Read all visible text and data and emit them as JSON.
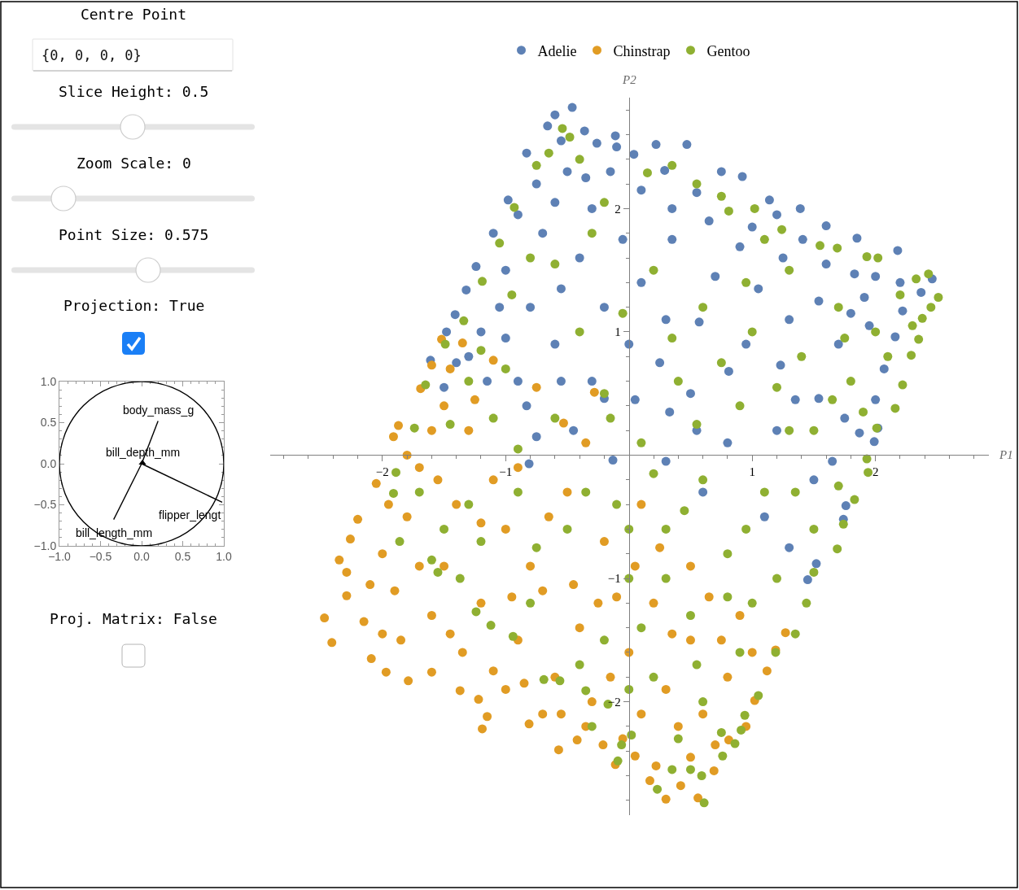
{
  "chart_data": [
    {
      "type": "other",
      "annotations": [
        "Centre Point",
        "{0, 0, 0, 0}",
        "Slice Height: 0.5",
        "Zoom Scale: 0",
        "Point Size: 0.575",
        "Projection: True"
      ]
    },
    {
      "type": "line",
      "xlim": [
        -1,
        1
      ],
      "ylim": [
        -1,
        1
      ],
      "xticks": [
        {
          "value": -1,
          "label": "−1.0"
        },
        {
          "value": -0.9,
          "label": null
        },
        {
          "value": -0.8,
          "label": null
        },
        {
          "value": -0.7,
          "label": null
        },
        {
          "value": -0.6,
          "label": null
        },
        {
          "value": -0.5,
          "label": "−0.5"
        },
        {
          "value": -0.4,
          "label": null
        },
        {
          "value": -0.3,
          "label": null
        },
        {
          "value": -0.2,
          "label": null
        },
        {
          "value": -0.1,
          "label": null
        },
        {
          "value": 0,
          "label": "0.0"
        },
        {
          "value": 0.1,
          "label": null
        },
        {
          "value": 0.2,
          "label": null
        },
        {
          "value": 0.3,
          "label": null
        },
        {
          "value": 0.4,
          "label": null
        },
        {
          "value": 0.5,
          "label": "0.5"
        },
        {
          "value": 0.6,
          "label": null
        },
        {
          "value": 0.7,
          "label": null
        },
        {
          "value": 0.8,
          "label": null
        },
        {
          "value": 0.9,
          "label": null
        },
        {
          "value": 1,
          "label": "1.0"
        }
      ],
      "yticks": [
        {
          "value": -1,
          "label": "−1.0"
        },
        {
          "value": -0.9,
          "label": null
        },
        {
          "value": -0.8,
          "label": null
        },
        {
          "value": -0.7,
          "label": null
        },
        {
          "value": -0.6,
          "label": null
        },
        {
          "value": -0.5,
          "label": "−0.5"
        },
        {
          "value": -0.4,
          "label": null
        },
        {
          "value": -0.3,
          "label": null
        },
        {
          "value": -0.2,
          "label": null
        },
        {
          "value": -0.1,
          "label": null
        },
        {
          "value": 0,
          "label": "0.0"
        },
        {
          "value": 0.1,
          "label": null
        },
        {
          "value": 0.2,
          "label": null
        },
        {
          "value": 0.3,
          "label": null
        },
        {
          "value": 0.4,
          "label": null
        },
        {
          "value": 0.5,
          "label": "0.5"
        },
        {
          "value": 0.6,
          "label": null
        },
        {
          "value": 0.7,
          "label": null
        },
        {
          "value": 0.8,
          "label": null
        },
        {
          "value": 0.9,
          "label": null
        },
        {
          "value": 1,
          "label": "1.0"
        }
      ],
      "series": [
        {
          "name": "body_mass_g",
          "color": "#000000",
          "x": [
            0,
            0.2
          ],
          "values": [
            0,
            0.52
          ]
        },
        {
          "name": "bill_depth_mm",
          "type": "scatter",
          "color": "#000000",
          "marker": "triangle",
          "x": [
            0.01
          ],
          "values": [
            0.01
          ]
        },
        {
          "name": "flipper_lengt",
          "color": "#000000",
          "x": [
            0,
            0.98
          ],
          "values": [
            0,
            -0.47
          ]
        },
        {
          "name": "bill_length_mm",
          "color": "#000000",
          "x": [
            0,
            -0.34
          ],
          "values": [
            0,
            -0.68
          ]
        }
      ]
    },
    {
      "type": "other",
      "annotations": [
        "Proj. Matrix: False"
      ]
    },
    {
      "type": "scatter",
      "xlabel": "P1",
      "ylabel": "P2",
      "xlim": [
        -2.91,
        2.92
      ],
      "ylim": [
        -2.92,
        2.9
      ],
      "xticks": [
        {
          "value": -2.8,
          "label": null
        },
        {
          "value": -2.6,
          "label": null
        },
        {
          "value": -2.4,
          "label": null
        },
        {
          "value": -2.2,
          "label": null
        },
        {
          "value": -2,
          "label": "−2"
        },
        {
          "value": -1.8,
          "label": null
        },
        {
          "value": -1.6,
          "label": null
        },
        {
          "value": -1.4,
          "label": null
        },
        {
          "value": -1.2,
          "label": null
        },
        {
          "value": -1,
          "label": "−1"
        },
        {
          "value": -0.8,
          "label": null
        },
        {
          "value": -0.6,
          "label": null
        },
        {
          "value": -0.4,
          "label": null
        },
        {
          "value": -0.2,
          "label": null
        },
        {
          "value": 0.2,
          "label": null
        },
        {
          "value": 0.4,
          "label": null
        },
        {
          "value": 0.6,
          "label": null
        },
        {
          "value": 0.8,
          "label": null
        },
        1,
        {
          "value": 1.2,
          "label": null
        },
        {
          "value": 1.4,
          "label": null
        },
        {
          "value": 1.6,
          "label": null
        },
        {
          "value": 1.8,
          "label": null
        },
        2,
        {
          "value": 2.2,
          "label": null
        },
        {
          "value": 2.4,
          "label": null
        },
        {
          "value": 2.6,
          "label": null
        },
        {
          "value": 2.8,
          "label": null
        }
      ],
      "yticks": [
        {
          "value": -2.8,
          "label": null
        },
        {
          "value": -2.6,
          "label": null
        },
        {
          "value": -2.4,
          "label": null
        },
        {
          "value": -2.2,
          "label": null
        },
        {
          "value": -2,
          "label": "−2"
        },
        {
          "value": -1.8,
          "label": null
        },
        {
          "value": -1.6,
          "label": null
        },
        {
          "value": -1.4,
          "label": null
        },
        {
          "value": -1.2,
          "label": null
        },
        {
          "value": -1,
          "label": "−1"
        },
        {
          "value": -0.8,
          "label": null
        },
        {
          "value": -0.6,
          "label": null
        },
        {
          "value": -0.4,
          "label": null
        },
        {
          "value": -0.2,
          "label": null
        },
        {
          "value": 0.2,
          "label": null
        },
        {
          "value": 0.4,
          "label": null
        },
        {
          "value": 0.6,
          "label": null
        },
        {
          "value": 0.8,
          "label": null
        },
        1,
        {
          "value": 1.2,
          "label": null
        },
        {
          "value": 1.4,
          "label": null
        },
        {
          "value": 1.6,
          "label": null
        },
        {
          "value": 1.8,
          "label": null
        },
        2,
        {
          "value": 2.2,
          "label": null
        },
        {
          "value": 2.4,
          "label": null
        },
        {
          "value": 2.6,
          "label": null
        },
        {
          "value": 2.8,
          "label": null
        }
      ],
      "legend": "top",
      "marker": "circle",
      "series": [
        {
          "name": "Adelie",
          "color": "#5e81b5",
          "x": [
            -0.46,
            -0.6,
            -0.66,
            -0.83,
            -0.98,
            -1.1,
            -1.24,
            -1.32,
            -1.41,
            -1.48,
            -1.61,
            0.22,
            0.47,
            0.04,
            0.92,
            1.14,
            1.39,
            1.6,
            1.85,
            2.18,
            2.46,
            2.37,
            2.22,
            2.16,
            2.07,
            2.02,
            1.99,
            1.76,
            1.74,
            1.52,
            1.45,
            1.91,
            1.83,
            1.41,
            0.9,
            0.55,
            0.29,
            0.81,
            1.23,
            1.54,
            0.33,
            0.57,
            1.54,
            1.87,
            -0.5,
            -0.3,
            -0.7,
            -1.0,
            -0.4,
            -0.1,
            -0.2,
            -0.8,
            -1.2,
            -1.3,
            -0.6,
            0.1,
            0.0,
            -0.3,
            -0.9,
            -1.5,
            0.5,
            1.2,
            0.8,
            1.5,
            0.3,
            -0.81,
            -0.13,
            -0.2,
            -0.83,
            1.1,
            0.6,
            -0.11,
            -0.36,
            -0.26,
            -0.55,
            -0.75,
            -0.9,
            -0.6,
            -0.35,
            -0.15,
            0.1,
            0.35,
            0.65,
            0.75,
            1.0,
            1.25,
            1.6,
            2.0,
            2.2,
            1.95,
            1.7,
            2.0,
            1.75,
            1.3,
            1.05,
            0.7,
            0.35,
            0.3,
            -0.05,
            -0.55,
            -1.05,
            -1.15,
            -1.4,
            -0.75,
            -0.45,
            0.05,
            0.55,
            0.95,
            1.35,
            1.65,
            1.3,
            0.25,
            -0.55,
            -1.0,
            1.2,
            1.8
          ],
          "values": [
            2.82,
            2.76,
            2.67,
            2.45,
            2.07,
            1.8,
            1.53,
            1.34,
            1.14,
            1.0,
            0.77,
            2.52,
            2.52,
            2.44,
            2.26,
            2.07,
            2.0,
            1.86,
            1.76,
            1.66,
            1.43,
            1.32,
            1.17,
            0.96,
            0.7,
            0.22,
            0.11,
            -0.41,
            -0.52,
            -0.88,
            -1.01,
            1.28,
            1.47,
            1.75,
            1.69,
            2.13,
            2.31,
            0.68,
            0.73,
            0.46,
            0.35,
            1.08,
            1.25,
            0.18,
            2.3,
            2.0,
            1.8,
            1.5,
            1.6,
            2.5,
            1.2,
            1.2,
            1.0,
            0.8,
            0.9,
            1.4,
            0.9,
            0.6,
            0.6,
            0.55,
            0.5,
            0.2,
            0.1,
            -0.2,
            -0.05,
            -0.07,
            -0.04,
            0.46,
            0.4,
            -0.5,
            -0.3,
            2.59,
            2.63,
            2.53,
            2.55,
            2.2,
            1.95,
            2.05,
            2.25,
            2.3,
            2.15,
            2.0,
            1.9,
            2.3,
            1.85,
            1.6,
            1.55,
            1.45,
            1.4,
            1.05,
            0.9,
            0.45,
            0.3,
            1.1,
            1.35,
            1.45,
            1.75,
            1.1,
            1.75,
            1.35,
            1.2,
            0.6,
            0.75,
            0.15,
            0.2,
            0.45,
            0.2,
            0.9,
            0.45,
            -0.05,
            -0.75,
            0.75,
            0.6,
            0.95,
            1.95,
            1.15
          ]
        },
        {
          "name": "Chinstrap",
          "color": "#e19c24",
          "x": [
            -2.47,
            -2.41,
            -2.09,
            -1.97,
            -1.79,
            -1.6,
            -1.37,
            -1.22,
            -1.15,
            -1.19,
            -0.81,
            -0.57,
            -0.42,
            -0.21,
            -0.11,
            -2.26,
            -2.2,
            -2.05,
            -2.29,
            -2.29,
            -1.52,
            -1.6,
            -1.87,
            -1.91,
            -1.35,
            -1.69,
            -1.1,
            -0.53,
            -0.28,
            0.3,
            0.56,
            0.17,
            0.42,
            0.69,
            1.02,
            1.12,
            1.19,
            1.27,
            0.81,
            0.05,
            0.22,
            -1.8,
            -1.5,
            -1.2,
            -0.9,
            -0.6,
            -0.3,
            -1.9,
            -1.6,
            -1.0,
            -0.7,
            -0.4,
            -1.3,
            -1.6,
            -1.1,
            0.0,
            0.3,
            0.6,
            0.2,
            0.5,
            0.8,
            -0.2,
            0.1,
            0.5,
            0.9,
            -2.0,
            -1.7,
            -1.4,
            -0.8,
            -0.5,
            -1.0,
            -0.7,
            -2.35,
            -2.15,
            -2.0,
            -1.85,
            -1.7,
            -1.95,
            -1.8,
            -1.5,
            -1.45,
            -1.25,
            -1.2,
            -1.35,
            -1.1,
            -0.85,
            -0.55,
            -0.35,
            -0.15,
            -0.45,
            -0.1,
            0.25,
            0.65,
            0.75,
            1.0,
            0.4,
            0.1,
            0.7,
            0.5,
            0.95,
            -0.05,
            -0.65,
            -0.9,
            -0.35,
            -0.75,
            -1.55,
            -2.1,
            -1.45,
            0.05,
            -0.95,
            0.35,
            -0.25
          ],
          "values": [
            -1.32,
            -1.52,
            -1.65,
            -1.76,
            -1.83,
            -1.76,
            -1.91,
            -1.98,
            -2.12,
            -2.22,
            -2.18,
            -2.39,
            -2.31,
            -2.35,
            -2.51,
            -0.68,
            -0.52,
            -0.23,
            -0.95,
            -1.14,
            0.94,
            0.73,
            0.24,
            0.15,
            0.91,
            0.54,
            0.77,
            0.26,
            0.51,
            -2.79,
            -2.78,
            -2.64,
            -2.68,
            -2.56,
            -1.99,
            -1.75,
            -1.58,
            -1.44,
            -2.31,
            -2.44,
            -2.52,
            -0.5,
            -0.9,
            -1.2,
            -1.5,
            -1.8,
            -2.0,
            -1.1,
            -1.3,
            -0.6,
            -1.1,
            -1.4,
            0.2,
            0.2,
            -0.2,
            -1.6,
            -1.9,
            -2.1,
            -1.2,
            -1.5,
            -1.8,
            -0.7,
            -0.4,
            -0.9,
            -1.3,
            -0.8,
            -0.1,
            -0.4,
            -0.9,
            -0.3,
            -1.9,
            -2.1,
            -0.85,
            -1.35,
            -1.45,
            -1.5,
            -0.9,
            -0.4,
            0.0,
            0.4,
            0.7,
            0.45,
            -0.55,
            -1.6,
            -1.75,
            -1.85,
            -2.1,
            -2.2,
            -1.8,
            -1.05,
            -1.15,
            -0.75,
            -1.15,
            -1.5,
            -1.6,
            -2.2,
            -2.1,
            -2.35,
            -2.45,
            -2.2,
            -2.3,
            -0.5,
            -0.1,
            0.1,
            0.55,
            -0.2,
            -1.05,
            -1.45,
            -0.9,
            -1.15,
            -1.45,
            -1.2
          ]
        },
        {
          "name": "Gentoo",
          "color": "#8fb032",
          "x": [
            -0.54,
            -0.48,
            -0.75,
            -0.93,
            -1.05,
            -1.19,
            -1.34,
            -1.49,
            -1.65,
            -1.74,
            -1.89,
            -1.91,
            -1.86,
            -1.6,
            -1.37,
            -1.24,
            -1.12,
            -0.94,
            -0.69,
            -0.56,
            -0.35,
            -0.17,
            -0.09,
            -0.06,
            0.61,
            0.23,
            0.5,
            0.76,
            0.86,
            0.91,
            0.94,
            1.19,
            1.44,
            1.69,
            1.74,
            1.83,
            1.94,
            1.93,
            0.02,
            0.59,
            2.51,
            2.43,
            2.33,
            2.45,
            2.38,
            2.35,
            2.29,
            2.22,
            2.16,
            2.01,
            2.02,
            1.93,
            1.69,
            1.24,
            1.02,
            0.81,
            0.55,
            0.15,
            0.2,
            0.6,
            1.0,
            1.4,
            1.8,
            0.4,
            0.9,
            1.5,
            0.1,
            0.6,
            1.1,
            1.5,
            0.3,
            0.8,
            1.2,
            0.0,
            0.5,
            0.9,
            0.2,
            0.6,
            -0.2,
            -0.5,
            -0.9,
            -1.3,
            -0.6,
            -1.1,
            -0.4,
            -0.8,
            -0.3,
            -1.0,
            1.3,
            2.0,
            1.7,
            -0.1,
            -1.5,
            -1.3,
            -0.2,
            0.3,
            1.0,
            0.4,
            -0.3,
            -0.65,
            -0.4,
            -0.2,
            0.35,
            0.75,
            1.1,
            1.55,
            2.2,
            2.3,
            2.1,
            1.9,
            1.65,
            1.2,
            0.75,
            0.35,
            -0.05,
            -0.6,
            -0.95,
            -1.2,
            -1.45,
            -1.7,
            -1.55,
            -1.2,
            -0.75,
            -0.35,
            0.0,
            0.45,
            0.95,
            1.35,
            1.7,
            1.5,
            1.35,
            1.05,
            0.75,
            0.35,
            0.0,
            -0.4,
            -0.8,
            0.1,
            0.55,
            0.8,
            1.3,
            0.55,
            -0.15,
            -0.9,
            0.95,
            1.75,
            0.2
          ],
          "values": [
            2.65,
            2.58,
            2.35,
            2.01,
            1.72,
            1.41,
            1.09,
            0.9,
            0.57,
            0.22,
            -0.14,
            -0.31,
            -0.7,
            -0.85,
            -1.0,
            -1.27,
            -1.38,
            -1.47,
            -1.82,
            -1.83,
            -1.91,
            -2.02,
            -2.48,
            -2.35,
            -2.82,
            -2.71,
            -2.55,
            -2.44,
            -2.34,
            -2.23,
            -2.11,
            -1.6,
            -1.2,
            -0.76,
            -0.56,
            -0.36,
            -0.14,
            -0.03,
            -2.27,
            -2.6,
            1.28,
            1.47,
            1.43,
            1.2,
            1.11,
            0.94,
            0.81,
            0.57,
            0.38,
            0.22,
            1.6,
            1.61,
            1.68,
            1.83,
            2.0,
            1.98,
            2.2,
            2.29,
            1.5,
            1.2,
            1.0,
            0.8,
            0.6,
            0.6,
            0.4,
            0.2,
            0.1,
            -0.2,
            -0.3,
            -0.6,
            -0.6,
            -0.8,
            -1.0,
            -1.0,
            -1.3,
            -1.6,
            -1.8,
            -2.0,
            -1.5,
            -0.6,
            -0.3,
            -0.4,
            0.3,
            0.3,
            1.0,
            1.6,
            1.8,
            0.7,
            1.5,
            1.0,
            1.2,
            -0.4,
            -0.6,
            0.6,
            0.5,
            -1.0,
            -1.2,
            -2.3,
            -2.2,
            2.45,
            2.4,
            2.05,
            2.35,
            2.1,
            1.75,
            1.7,
            1.3,
            1.05,
            0.8,
            0.35,
            0.45,
            0.55,
            0.75,
            0.95,
            1.15,
            1.55,
            1.3,
            0.85,
            0.25,
            -0.3,
            -0.95,
            -0.7,
            -0.75,
            -0.3,
            -0.6,
            -0.45,
            -0.6,
            -0.3,
            -0.25,
            -0.95,
            -1.45,
            -1.95,
            -2.25,
            -2.55,
            -1.9,
            -1.7,
            -1.2,
            -1.4,
            -1.7,
            -1.15,
            0.2,
            0.25,
            0.3,
            0.05,
            1.4,
            0.95,
            -0.15
          ]
        }
      ]
    }
  ]
}
